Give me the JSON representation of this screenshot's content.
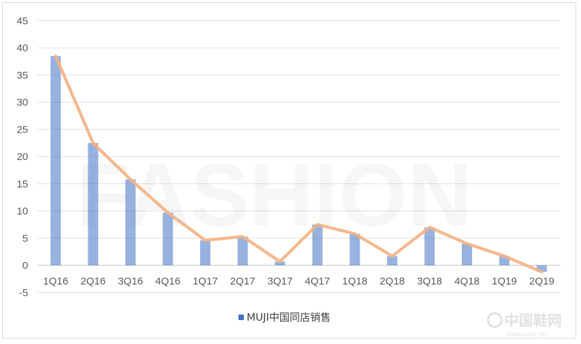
{
  "chart_data": {
    "type": "bar",
    "categories": [
      "1Q16",
      "2Q16",
      "3Q16",
      "4Q16",
      "1Q17",
      "2Q17",
      "3Q17",
      "4Q17",
      "1Q18",
      "2Q18",
      "3Q18",
      "4Q18",
      "1Q19",
      "2Q19"
    ],
    "series": [
      {
        "name": "MUJI中国同店销售",
        "type": "bar",
        "values": [
          38.5,
          22.5,
          15.8,
          9.7,
          4.6,
          5.3,
          0.7,
          7.5,
          5.8,
          1.7,
          7.0,
          4.0,
          1.7,
          -1.2
        ],
        "color": "#4472c4"
      },
      {
        "type": "line",
        "values": [
          38.5,
          22.5,
          15.8,
          9.7,
          4.6,
          5.3,
          0.7,
          7.5,
          5.8,
          1.7,
          7.0,
          4.0,
          1.7,
          -1.2
        ],
        "color": "#f4b183"
      }
    ],
    "yticks": [
      "45",
      "40",
      "35",
      "30",
      "25",
      "20",
      "15",
      "10",
      "5",
      "0",
      "-5"
    ],
    "ylim": [
      -5,
      45
    ],
    "grid": true,
    "legend": "bottom"
  },
  "watermark": {
    "text": "FASHION",
    "brand": "中国鞋网",
    "url": "www.cnxz.cn"
  }
}
